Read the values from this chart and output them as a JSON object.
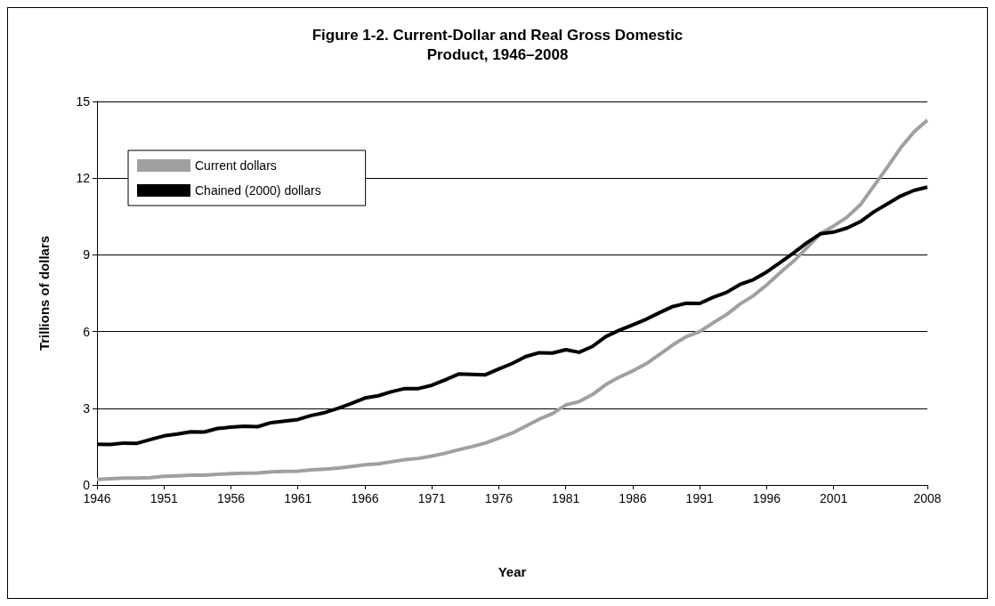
{
  "chart_data": {
    "type": "line",
    "title": "Figure 1-2. Current-Dollar and Real Gross Domestic\nProduct, 1946–2008",
    "xlabel": "Year",
    "ylabel": "Trillions of dollars",
    "x": [
      1946,
      1947,
      1948,
      1949,
      1950,
      1951,
      1952,
      1953,
      1954,
      1955,
      1956,
      1957,
      1958,
      1959,
      1960,
      1961,
      1962,
      1963,
      1964,
      1965,
      1966,
      1967,
      1968,
      1969,
      1970,
      1971,
      1972,
      1973,
      1974,
      1975,
      1976,
      1977,
      1978,
      1979,
      1980,
      1981,
      1982,
      1983,
      1984,
      1985,
      1986,
      1987,
      1988,
      1989,
      1990,
      1991,
      1992,
      1993,
      1994,
      1995,
      1996,
      1997,
      1998,
      1999,
      2000,
      2001,
      2002,
      2003,
      2004,
      2005,
      2006,
      2007,
      2008
    ],
    "series": [
      {
        "name": "Current dollars",
        "color": "#a0a0a0",
        "values": [
          0.22,
          0.24,
          0.27,
          0.27,
          0.29,
          0.34,
          0.36,
          0.38,
          0.38,
          0.42,
          0.44,
          0.46,
          0.47,
          0.51,
          0.53,
          0.54,
          0.59,
          0.62,
          0.66,
          0.72,
          0.79,
          0.83,
          0.91,
          0.99,
          1.04,
          1.13,
          1.24,
          1.38,
          1.5,
          1.64,
          1.83,
          2.03,
          2.3,
          2.57,
          2.79,
          3.13,
          3.26,
          3.54,
          3.93,
          4.22,
          4.46,
          4.74,
          5.1,
          5.48,
          5.8,
          6.0,
          6.34,
          6.66,
          7.07,
          7.4,
          7.82,
          8.3,
          8.75,
          9.27,
          9.82,
          10.13,
          10.47,
          10.96,
          11.69,
          12.42,
          13.18,
          13.81,
          14.27
        ]
      },
      {
        "name": "Chained (2000) dollars",
        "color": "#000000",
        "values": [
          1.59,
          1.58,
          1.64,
          1.63,
          1.78,
          1.92,
          1.99,
          2.08,
          2.07,
          2.21,
          2.26,
          2.3,
          2.28,
          2.44,
          2.5,
          2.56,
          2.72,
          2.83,
          3.0,
          3.19,
          3.4,
          3.49,
          3.65,
          3.77,
          3.77,
          3.9,
          4.11,
          4.34,
          4.32,
          4.31,
          4.54,
          4.75,
          5.02,
          5.17,
          5.16,
          5.29,
          5.19,
          5.42,
          5.81,
          6.05,
          6.26,
          6.48,
          6.74,
          6.98,
          7.11,
          7.1,
          7.34,
          7.53,
          7.84,
          8.03,
          8.33,
          8.7,
          9.07,
          9.47,
          9.82,
          9.89,
          10.05,
          10.3,
          10.68,
          10.99,
          11.3,
          11.52,
          11.65
        ]
      }
    ],
    "xlim": [
      1946,
      2008
    ],
    "xticks": [
      1946,
      1951,
      1956,
      1961,
      1966,
      1971,
      1976,
      1981,
      1986,
      1991,
      1996,
      2001,
      2008
    ],
    "ylim": [
      0,
      15
    ],
    "yticks": [
      0,
      3,
      6,
      9,
      12,
      15
    ],
    "grid": "y",
    "legend": "top left",
    "marker": "none",
    "line_style": "solid"
  }
}
